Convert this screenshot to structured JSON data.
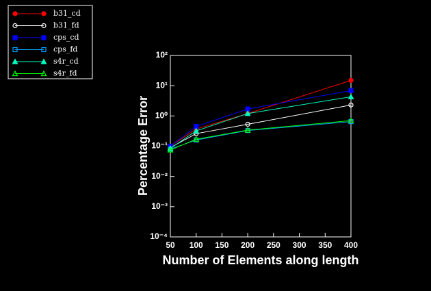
{
  "chart_data": {
    "type": "line",
    "xlabel": "Number of Elements along length",
    "ylabel": "Percentage Error",
    "x": [
      50,
      100,
      200,
      400
    ],
    "series": [
      {
        "name": "b31_cd",
        "color": "#ff0000",
        "marker": "circle",
        "filled": true,
        "values": [
          0.1,
          0.37,
          1.2,
          15
        ]
      },
      {
        "name": "b31_fd",
        "color": "#ffffff",
        "marker": "circle",
        "filled": false,
        "values": [
          0.09,
          0.26,
          0.53,
          2.3
        ]
      },
      {
        "name": "cps_cd",
        "color": "#0000ff",
        "marker": "square",
        "filled": true,
        "values": [
          0.1,
          0.45,
          1.7,
          6.9
        ]
      },
      {
        "name": "cps_fd",
        "color": "#00a0ff",
        "marker": "square",
        "filled": false,
        "values": [
          0.08,
          0.16,
          0.33,
          0.65
        ]
      },
      {
        "name": "s4r_cd",
        "color": "#00ffc0",
        "marker": "triangle",
        "filled": true,
        "values": [
          0.085,
          0.32,
          1.2,
          4.3
        ]
      },
      {
        "name": "s4r_fd",
        "color": "#00ff00",
        "marker": "triangle",
        "filled": false,
        "values": [
          0.075,
          0.17,
          0.34,
          0.7
        ]
      }
    ],
    "xlim": [
      50,
      400
    ],
    "xticks": [
      50,
      100,
      150,
      200,
      250,
      300,
      350,
      400
    ],
    "ylim": [
      0.0001,
      100
    ],
    "ylog": true,
    "yticks": [
      {
        "value": 0.0001,
        "label": "10⁻⁴"
      },
      {
        "value": 0.001,
        "label": "10⁻³"
      },
      {
        "value": 0.01,
        "label": "10⁻²"
      },
      {
        "value": 0.1,
        "label": "10⁻¹"
      },
      {
        "value": 1,
        "label": "10⁰"
      },
      {
        "value": 10,
        "label": "10¹"
      },
      {
        "value": 100,
        "label": "10²"
      }
    ],
    "legend": "top-left"
  }
}
